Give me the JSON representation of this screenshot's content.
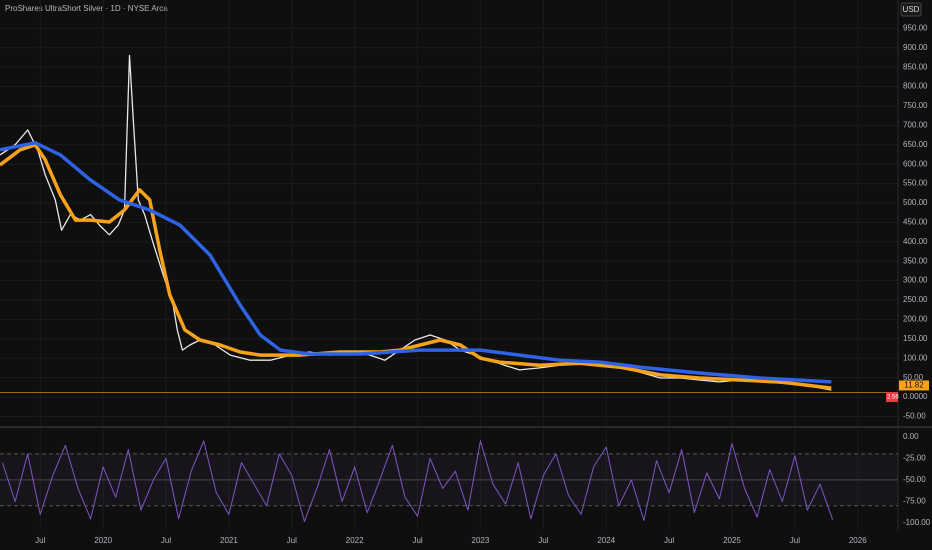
{
  "chart_data": [
    {
      "type": "line",
      "title": "ProShares UltraShort Silver · 1D · NYSE Arca",
      "currency": "USD",
      "last_price": 11.82,
      "last_label_2": 2.56,
      "xlim": [
        2019.18,
        2026.32
      ],
      "xticks": [
        {
          "value": 2019.5,
          "label": "Jul"
        },
        2020,
        {
          "value": 2020.5,
          "label": "Jul"
        },
        2021,
        {
          "value": 2021.5,
          "label": "Jul"
        },
        2022,
        {
          "value": 2022.5,
          "label": "Jul"
        },
        2023,
        {
          "value": 2023.5,
          "label": "Jul"
        },
        2024,
        {
          "value": 2024.5,
          "label": "Jul"
        },
        2025,
        {
          "value": 2025.5,
          "label": "Jul"
        },
        2026
      ],
      "ylim": [
        -72,
        1023
      ],
      "yticks": [
        {
          "value": 950,
          "label": "950.00"
        },
        {
          "value": 900,
          "label": "900.00"
        },
        {
          "value": 850,
          "label": "850.00"
        },
        {
          "value": 800,
          "label": "800.00"
        },
        {
          "value": 750,
          "label": "750.00"
        },
        {
          "value": 700,
          "label": "700.00"
        },
        {
          "value": 650,
          "label": "650.00"
        },
        {
          "value": 600,
          "label": "600.00"
        },
        {
          "value": 550,
          "label": "550.00"
        },
        {
          "value": 500,
          "label": "500.00"
        },
        {
          "value": 450,
          "label": "450.00"
        },
        {
          "value": 400,
          "label": "400.00"
        },
        {
          "value": 350,
          "label": "350.00"
        },
        {
          "value": 300,
          "label": "300.00"
        },
        {
          "value": 250,
          "label": "250.00"
        },
        {
          "value": 200,
          "label": "200.00"
        },
        {
          "value": 150,
          "label": "150.00"
        },
        {
          "value": 100,
          "label": "100.00"
        },
        {
          "value": 50,
          "label": "50.00"
        },
        {
          "value": 0,
          "label": "0.0000"
        },
        {
          "value": -50,
          "label": "-50.00"
        }
      ],
      "grid": true,
      "series": [
        {
          "color": "#e8e8e8",
          "width": 1.3,
          "x": [
            2019.18,
            2019.3,
            2019.4,
            2019.48,
            2019.54,
            2019.62,
            2019.67,
            2019.74,
            2019.82,
            2019.9,
            2019.97,
            2020.05,
            2020.12,
            2020.17,
            2020.21,
            2020.24,
            2020.28,
            2020.33,
            2020.39,
            2020.44,
            2020.49,
            2020.55,
            2020.59,
            2020.63,
            2020.69,
            2020.77,
            2020.89,
            2021.01,
            2021.17,
            2021.33,
            2021.49,
            2021.64,
            2021.8,
            2021.96,
            2022.12,
            2022.24,
            2022.36,
            2022.48,
            2022.6,
            2022.72,
            2022.84,
            2022.96,
            2023.08,
            2023.19,
            2023.31,
            2023.47,
            2023.63,
            2023.79,
            2023.95,
            2024.11,
            2024.27,
            2024.43,
            2024.59,
            2024.74,
            2024.9,
            2025.06,
            2025.22,
            2025.38,
            2025.54,
            2025.66,
            2025.79
          ],
          "values": [
            624,
            650,
            688,
            637,
            572,
            508,
            430,
            470,
            456,
            470,
            443,
            418,
            443,
            482,
            880,
            714,
            508,
            470,
            405,
            353,
            302,
            250,
            173,
            121,
            134,
            147,
            134,
            108,
            95,
            95,
            108,
            116,
            108,
            116,
            108,
            95,
            121,
            147,
            160,
            147,
            121,
            108,
            95,
            82,
            70,
            75,
            82,
            90,
            82,
            77,
            64,
            49,
            49,
            44,
            39,
            44,
            39,
            36,
            31,
            26,
            18
          ]
        },
        {
          "color": "#f7a21b",
          "width": 3.5,
          "x": [
            2019.18,
            2019.34,
            2019.46,
            2019.54,
            2019.66,
            2019.78,
            2019.9,
            2020.05,
            2020.17,
            2020.29,
            2020.37,
            2020.45,
            2020.53,
            2020.65,
            2020.77,
            2020.93,
            2021.09,
            2021.25,
            2021.56,
            2021.88,
            2022.2,
            2022.36,
            2022.52,
            2022.68,
            2022.84,
            2023.0,
            2023.15,
            2023.47,
            2023.79,
            2024.11,
            2024.43,
            2024.74,
            2025.06,
            2025.38,
            2025.79
          ],
          "values": [
            598,
            637,
            650,
            611,
            521,
            456,
            456,
            451,
            482,
            534,
            508,
            379,
            263,
            173,
            147,
            134,
            116,
            108,
            108,
            116,
            116,
            121,
            134,
            147,
            134,
            100,
            90,
            82,
            87,
            77,
            57,
            49,
            44,
            39,
            23
          ]
        },
        {
          "color": "#2f63e6",
          "width": 3.5,
          "x": [
            2019.18,
            2019.46,
            2019.66,
            2019.9,
            2020.13,
            2020.37,
            2020.61,
            2020.85,
            2021.09,
            2021.25,
            2021.41,
            2021.64,
            2022.04,
            2022.52,
            2023.0,
            2023.31,
            2023.63,
            2023.95,
            2024.27,
            2024.74,
            2025.22,
            2025.79
          ],
          "values": [
            637,
            655,
            624,
            559,
            508,
            482,
            443,
            366,
            237,
            160,
            121,
            111,
            111,
            121,
            121,
            108,
            95,
            90,
            77,
            62,
            49,
            39
          ]
        }
      ]
    },
    {
      "type": "line",
      "xlim": [
        2019.18,
        2026.32
      ],
      "ylim": [
        -108,
        10
      ],
      "yticks": [
        {
          "value": 0,
          "label": "0.00"
        },
        {
          "value": -25,
          "label": "-25.00"
        },
        {
          "value": -50,
          "label": "-50.00"
        },
        {
          "value": -75,
          "label": "-75.00"
        },
        {
          "value": -100,
          "label": "-100.00"
        }
      ],
      "bands": [
        -20,
        -80
      ],
      "series": [
        {
          "color": "#7e57c2",
          "width": 1,
          "x": [
            2019.2,
            2019.3,
            2019.4,
            2019.5,
            2019.6,
            2019.7,
            2019.8,
            2019.9,
            2020.0,
            2020.1,
            2020.2,
            2020.3,
            2020.4,
            2020.5,
            2020.6,
            2020.7,
            2020.8,
            2020.9,
            2021.0,
            2021.1,
            2021.2,
            2021.3,
            2021.4,
            2021.5,
            2021.6,
            2021.7,
            2021.8,
            2021.9,
            2022.0,
            2022.1,
            2022.2,
            2022.3,
            2022.4,
            2022.5,
            2022.6,
            2022.7,
            2022.8,
            2022.9,
            2023.0,
            2023.1,
            2023.2,
            2023.3,
            2023.4,
            2023.5,
            2023.6,
            2023.7,
            2023.8,
            2023.9,
            2024.0,
            2024.1,
            2024.2,
            2024.3,
            2024.4,
            2024.5,
            2024.6,
            2024.7,
            2024.8,
            2024.9,
            2025.0,
            2025.1,
            2025.2,
            2025.3,
            2025.4,
            2025.5,
            2025.6,
            2025.7,
            2025.8
          ],
          "values": [
            -30,
            -75,
            -20,
            -90,
            -45,
            -10,
            -60,
            -95,
            -35,
            -70,
            -15,
            -85,
            -50,
            -25,
            -95,
            -40,
            -5,
            -65,
            -90,
            -30,
            -55,
            -80,
            -20,
            -45,
            -98,
            -60,
            -15,
            -75,
            -35,
            -88,
            -50,
            -10,
            -70,
            -92,
            -25,
            -60,
            -40,
            -85,
            -5,
            -55,
            -78,
            -30,
            -95,
            -45,
            -20,
            -68,
            -90,
            -35,
            -12,
            -80,
            -50,
            -97,
            -28,
            -65,
            -15,
            -88,
            -42,
            -72,
            -8,
            -60,
            -93,
            -38,
            -75,
            -22,
            -85,
            -55,
            -96
          ]
        }
      ]
    }
  ]
}
